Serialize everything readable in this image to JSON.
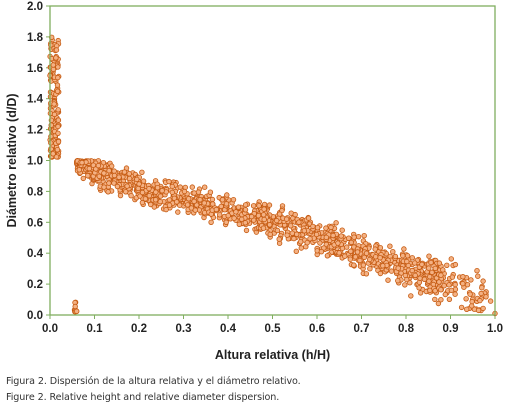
{
  "chart_data": {
    "type": "scatter",
    "xlabel": "Altura relativa (h/H)",
    "ylabel": "Diámetro relativo (d/D)",
    "xlim": [
      0,
      1
    ],
    "ylim": [
      0,
      2
    ],
    "x_ticks": [
      "0.0",
      "0.1",
      "0.2",
      "0.3",
      "0.4",
      "0.5",
      "0.6",
      "0.7",
      "0.8",
      "0.9",
      "1.0"
    ],
    "y_ticks": [
      "0.0",
      "0.2",
      "0.4",
      "0.6",
      "0.8",
      "1.0",
      "1.2",
      "1.4",
      "1.6",
      "1.8",
      "2.0"
    ],
    "grid": false,
    "colors": {
      "marker_fill": "#f4b183",
      "marker_edge": "#c55a11",
      "frame": "#7fae5f"
    },
    "cluster_near_zero": {
      "x_range": [
        0.0,
        0.02
      ],
      "y_range": [
        1.02,
        1.8
      ],
      "description_values": [
        [
          0.005,
          1.78
        ],
        [
          0.01,
          1.75
        ],
        [
          0.005,
          1.6
        ],
        [
          0.01,
          1.4
        ],
        [
          0.005,
          1.25
        ],
        [
          0.01,
          1.1
        ],
        [
          0.015,
          1.05
        ]
      ]
    },
    "main_trend": {
      "x_start": 0.05,
      "y_start": 1.0,
      "x_end": 1.0,
      "y_end": 0.0,
      "points": [
        [
          0.06,
          0.99
        ],
        [
          0.08,
          0.97
        ],
        [
          0.1,
          0.93
        ],
        [
          0.12,
          0.9
        ],
        [
          0.15,
          0.87
        ],
        [
          0.18,
          0.84
        ],
        [
          0.2,
          0.82
        ],
        [
          0.22,
          0.8
        ],
        [
          0.25,
          0.79
        ],
        [
          0.28,
          0.77
        ],
        [
          0.3,
          0.75
        ],
        [
          0.33,
          0.73
        ],
        [
          0.35,
          0.71
        ],
        [
          0.38,
          0.69
        ],
        [
          0.4,
          0.68
        ],
        [
          0.43,
          0.66
        ],
        [
          0.45,
          0.64
        ],
        [
          0.48,
          0.62
        ],
        [
          0.5,
          0.6
        ],
        [
          0.53,
          0.58
        ],
        [
          0.55,
          0.56
        ],
        [
          0.58,
          0.53
        ],
        [
          0.6,
          0.51
        ],
        [
          0.63,
          0.48
        ],
        [
          0.65,
          0.45
        ],
        [
          0.68,
          0.42
        ],
        [
          0.7,
          0.4
        ],
        [
          0.73,
          0.37
        ],
        [
          0.75,
          0.35
        ],
        [
          0.78,
          0.33
        ],
        [
          0.8,
          0.3
        ],
        [
          0.83,
          0.28
        ],
        [
          0.85,
          0.25
        ],
        [
          0.88,
          0.22
        ],
        [
          0.9,
          0.2
        ],
        [
          0.93,
          0.18
        ],
        [
          0.95,
          0.13
        ],
        [
          0.98,
          0.15
        ],
        [
          0.99,
          0.09
        ],
        [
          1.0,
          0.01
        ]
      ]
    }
  },
  "captions": [
    "Figura 2. Dispersión de la altura relativa y el diámetro relativo.",
    "Figure 2. Relative height and relative diameter dispersion."
  ]
}
